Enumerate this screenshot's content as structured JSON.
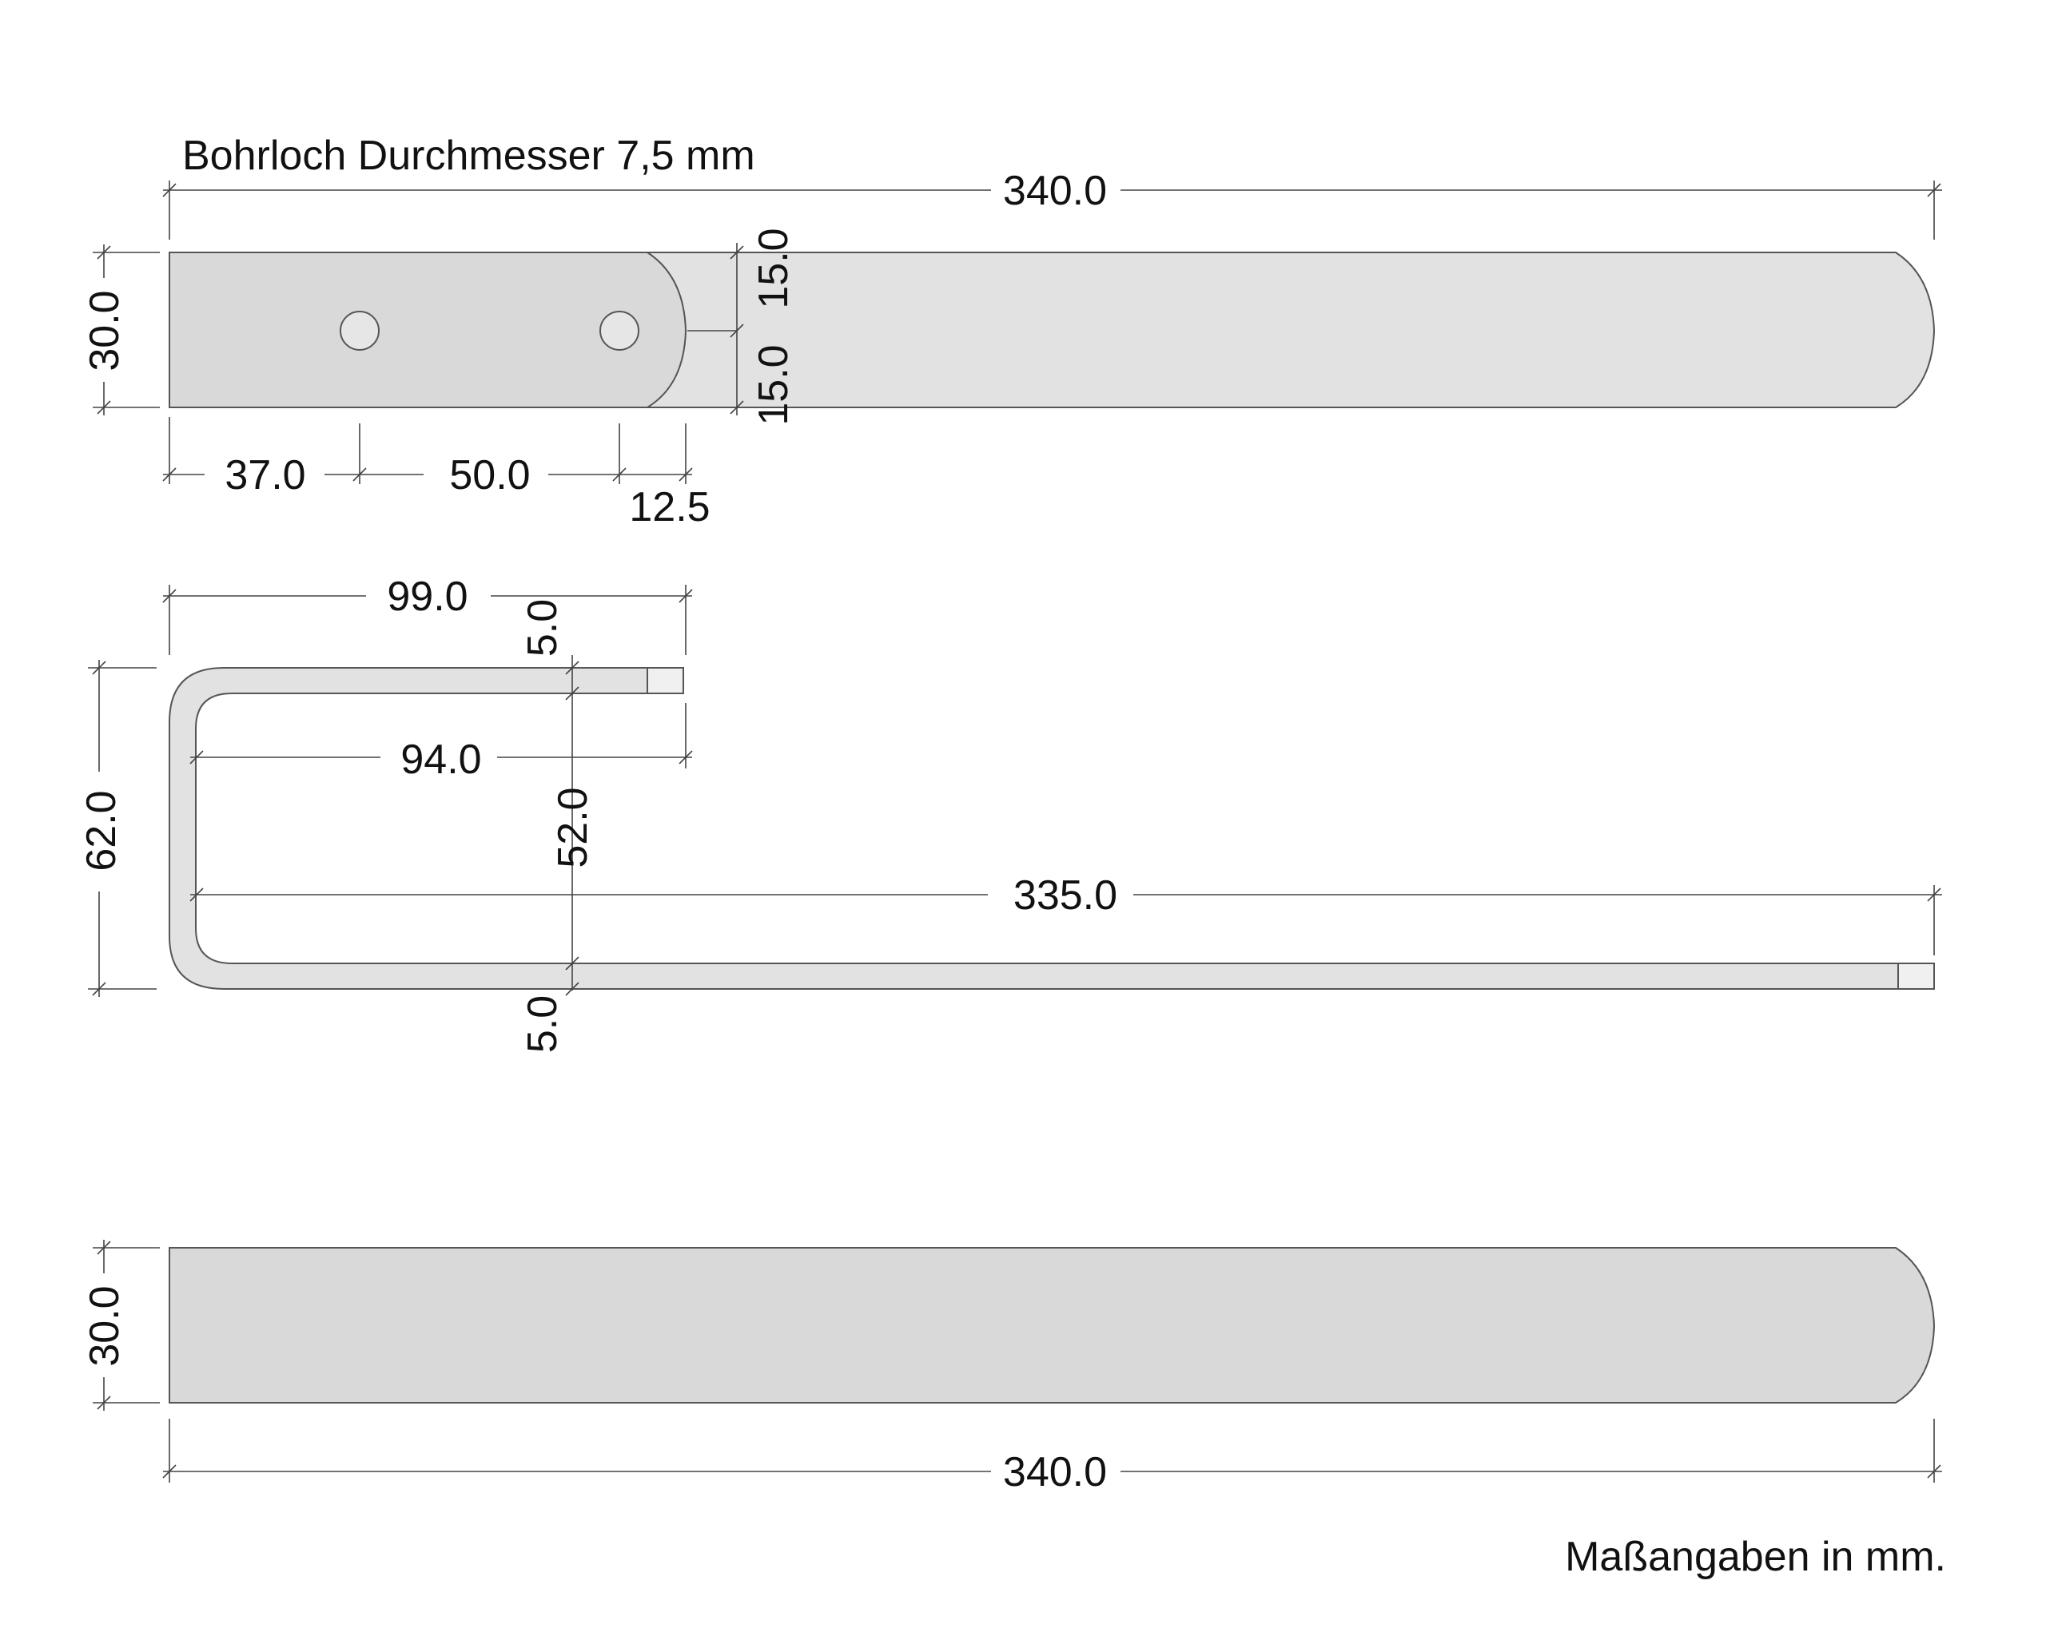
{
  "notes": {
    "hole": "Bohrloch Durchmesser 7,5 mm",
    "units": "Maßangaben in mm."
  },
  "view1": {
    "length": "340.0",
    "width": "30.0",
    "half_top": "15.0",
    "half_bottom": "15.0",
    "hole1": "37.0",
    "hole_spacing": "50.0",
    "edge": "12.5"
  },
  "view2": {
    "top_leg": "99.0",
    "thickness_top": "5.0",
    "inner_top": "94.0",
    "height": "62.0",
    "inner_height": "52.0",
    "long_leg": "335.0",
    "thickness_bottom": "5.0"
  },
  "view3": {
    "width": "30.0",
    "length": "340.0"
  }
}
